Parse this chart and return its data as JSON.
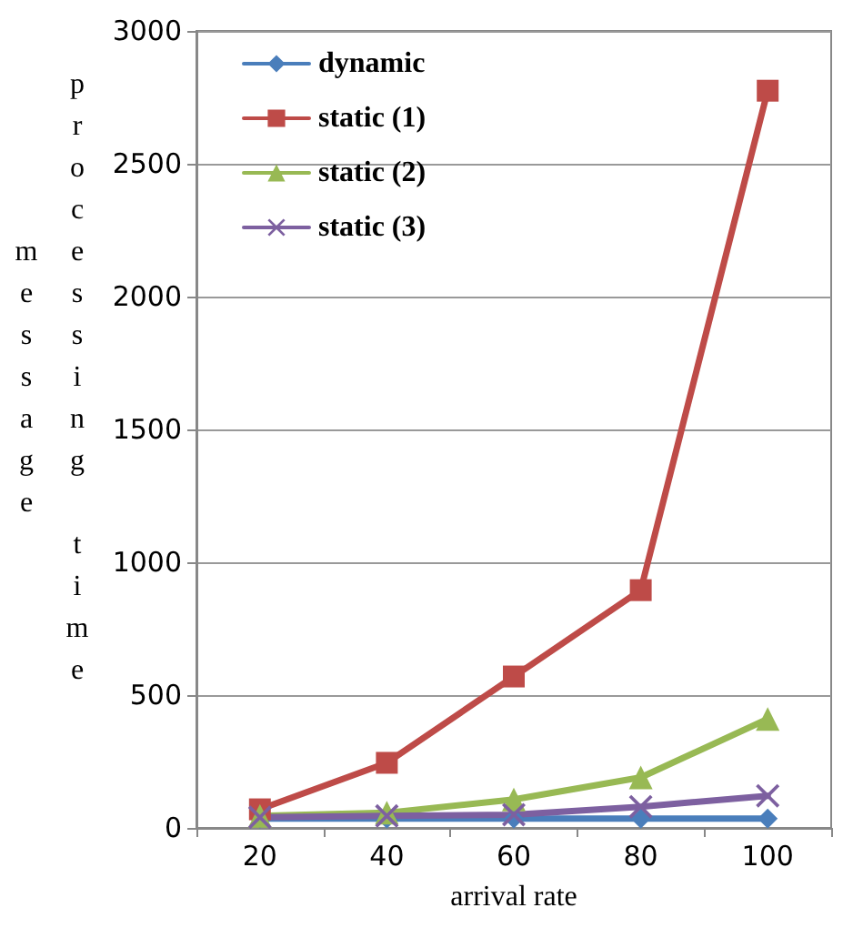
{
  "chart_data": {
    "type": "line",
    "xlabel": "arrival rate",
    "ylabel": "message processing time",
    "categories": [
      "20",
      "40",
      "60",
      "80",
      "100"
    ],
    "series": [
      {
        "name": "dynamic",
        "color": "#4a7ebb",
        "marker": "diamond",
        "values": [
          35,
          35,
          35,
          35,
          35
        ]
      },
      {
        "name": "static (1)",
        "color": "#be4b48",
        "marker": "square",
        "values": [
          70,
          245,
          570,
          895,
          2775
        ]
      },
      {
        "name": "static (2)",
        "color": "#98b954",
        "marker": "triangle",
        "values": [
          45,
          57,
          107,
          190,
          410
        ]
      },
      {
        "name": "static (3)",
        "color": "#7d60a0",
        "marker": "cross",
        "values": [
          40,
          45,
          50,
          80,
          121
        ]
      }
    ],
    "ylim": [
      0,
      3000
    ],
    "yticks": [
      0,
      500,
      1000,
      1500,
      2000,
      2500,
      3000
    ],
    "grid": "y",
    "legend": "top left",
    "line_style": "solid"
  }
}
